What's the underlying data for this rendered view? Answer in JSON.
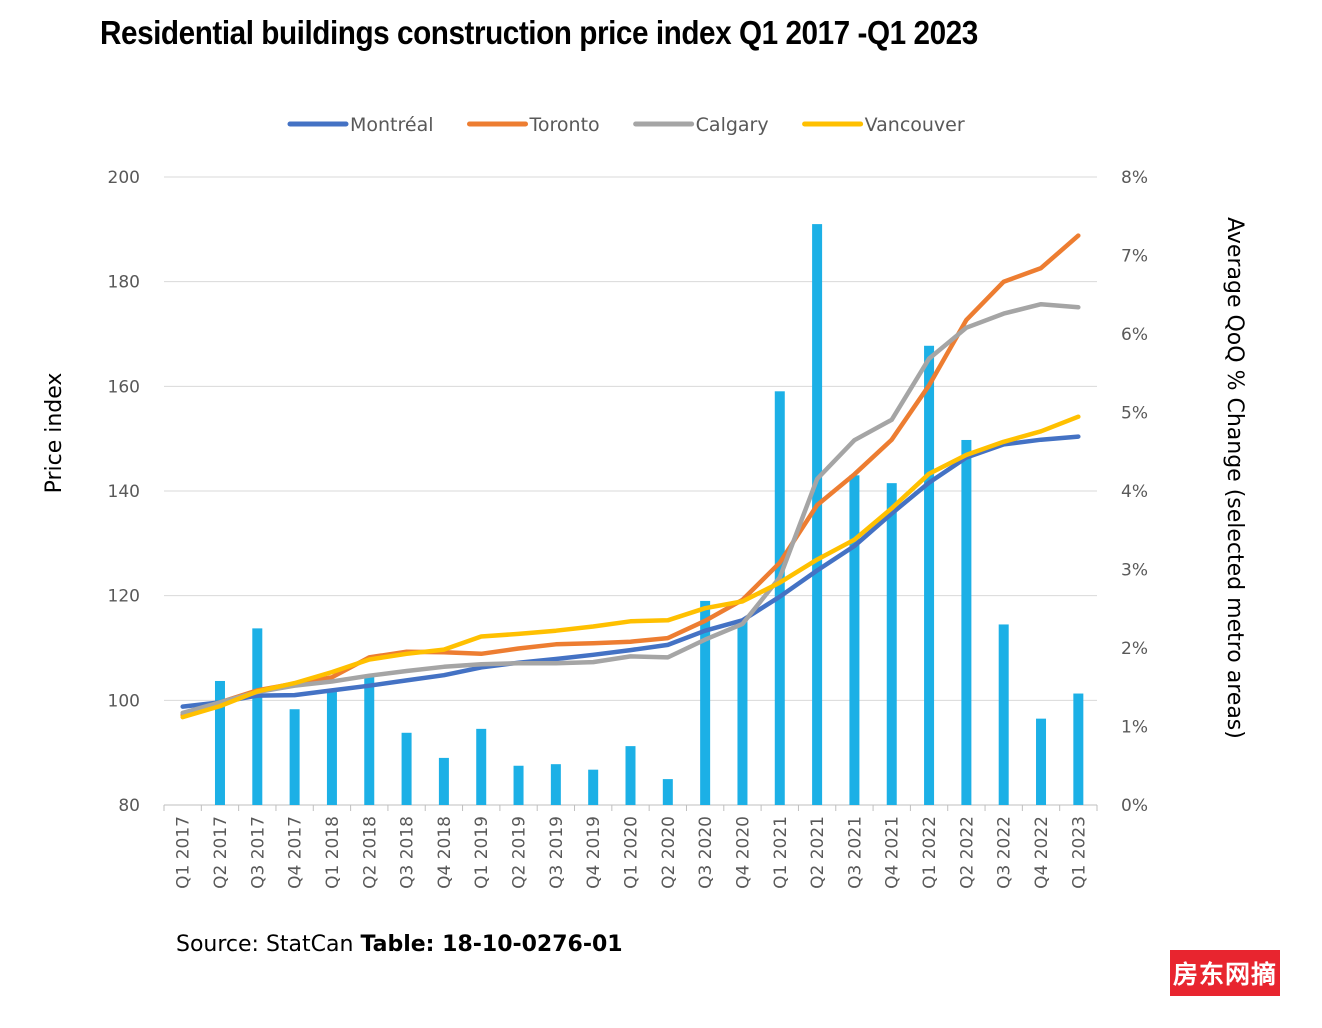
{
  "chart_data": {
    "type": "bar+line",
    "title": "Residential buildings construction price index Q1 2017 -Q1 2023",
    "ylabel": "Price index",
    "y2label": "Average QoQ % Change  (selected metro areas)",
    "ylim": [
      80,
      200
    ],
    "yticks": [
      "80",
      "100",
      "120",
      "140",
      "160",
      "180",
      "200"
    ],
    "y2lim": [
      0,
      8
    ],
    "y2ticks": [
      "0%",
      "1%",
      "2%",
      "3%",
      "4%",
      "5%",
      "6%",
      "7%",
      "8%"
    ],
    "grid": true,
    "legend_position": "top",
    "categories": [
      "Q1 2017",
      "Q2 2017",
      "Q3 2017",
      "Q4 2017",
      "Q1 2018",
      "Q2 2018",
      "Q3 2018",
      "Q4 2018",
      "Q1 2019",
      "Q2 2019",
      "Q3 2019",
      "Q4 2019",
      "Q1 2020",
      "Q2 2020",
      "Q3 2020",
      "Q4 2020",
      "Q1 2021",
      "Q2 2021",
      "Q3 2021",
      "Q4 2021",
      "Q1 2022",
      "Q2 2022",
      "Q3 2022",
      "Q4 2022",
      "Q1 2023"
    ],
    "bars": {
      "axis": "right",
      "color": "#1cb0e6",
      "values": [
        null,
        1.58,
        2.25,
        1.22,
        1.45,
        1.65,
        0.92,
        0.6,
        0.97,
        0.5,
        0.52,
        0.45,
        0.75,
        0.33,
        2.6,
        2.35,
        5.27,
        7.4,
        4.2,
        4.1,
        5.85,
        4.65,
        2.3,
        1.1,
        1.42
      ]
    },
    "series": [
      {
        "name": "Montréal",
        "color": "#4472c4",
        "values": [
          98.8,
          99.6,
          100.9,
          101.0,
          101.9,
          102.8,
          103.8,
          104.8,
          106.3,
          107.2,
          107.9,
          108.7,
          109.6,
          110.6,
          113.3,
          115.3,
          119.8,
          124.8,
          129.5,
          135.7,
          141.6,
          146.4,
          148.9,
          149.8,
          150.4
        ]
      },
      {
        "name": "Toronto",
        "color": "#ed7d31",
        "values": [
          97.2,
          99.6,
          101.9,
          103.2,
          104.4,
          108.2,
          109.3,
          109.2,
          108.9,
          109.9,
          110.7,
          110.9,
          111.2,
          111.9,
          115.2,
          119.2,
          126.3,
          137.3,
          143.2,
          149.8,
          160.2,
          172.7,
          180.0,
          182.6,
          188.8
        ]
      },
      {
        "name": "Calgary",
        "color": "#a5a5a5",
        "values": [
          97.6,
          99.6,
          101.6,
          102.8,
          103.6,
          104.7,
          105.6,
          106.4,
          106.9,
          107.1,
          107.1,
          107.3,
          108.4,
          108.2,
          111.6,
          114.6,
          123.5,
          142.3,
          149.7,
          153.6,
          165.3,
          171.2,
          173.9,
          175.7,
          175.1
        ]
      },
      {
        "name": "Vancouver",
        "color": "#ffc000",
        "values": [
          96.8,
          98.9,
          101.7,
          103.3,
          105.4,
          107.8,
          108.9,
          109.7,
          112.2,
          112.7,
          113.3,
          114.1,
          115.1,
          115.3,
          117.6,
          118.9,
          122.5,
          126.9,
          130.7,
          136.7,
          143.3,
          146.9,
          149.4,
          151.4,
          154.2
        ]
      }
    ]
  },
  "source": {
    "prefix": "Source: StatCan ",
    "bold": "Table: 18-10-0276-01"
  },
  "watermark": "房东网摘"
}
